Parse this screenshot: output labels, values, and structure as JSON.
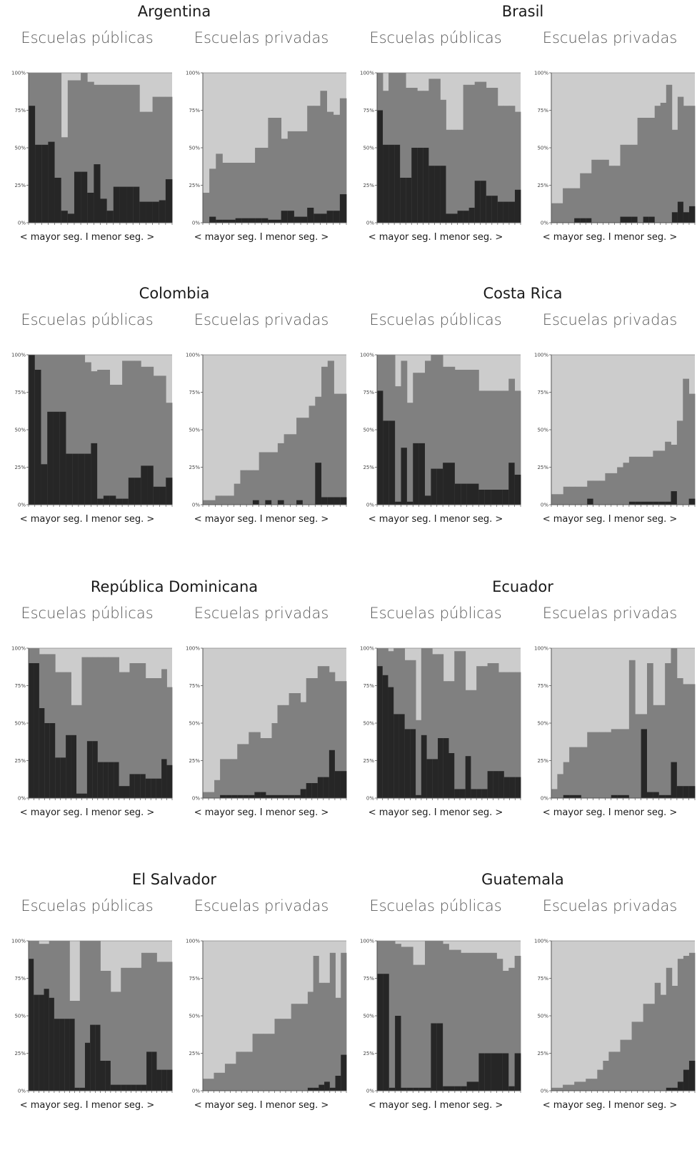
{
  "panel_titles": {
    "public": "Escuelas públicas",
    "private": "Escuelas privadas"
  },
  "x_axis_label": "< mayor seg. I menor seg. >",
  "y_ticks": [
    "0%",
    "25%",
    "50%",
    "75%",
    "100%"
  ],
  "colors": {
    "dark": "#262626",
    "medium": "#808080",
    "light": "#cccccc"
  },
  "countries": [
    {
      "name": "Argentina",
      "public": {
        "dark": [
          78,
          52,
          52,
          54,
          30,
          8,
          6,
          34,
          34,
          20,
          39,
          16,
          8,
          24,
          24,
          24,
          24,
          14,
          14,
          14,
          15,
          29
        ],
        "mid": [
          100,
          100,
          100,
          100,
          100,
          57,
          95,
          95,
          100,
          94,
          92,
          92,
          92,
          92,
          92,
          92,
          92,
          74,
          74,
          84,
          84,
          84
        ]
      },
      "private": {
        "dark": [
          0,
          4,
          2,
          2,
          2,
          3,
          3,
          3,
          3,
          3,
          2,
          2,
          8,
          8,
          4,
          4,
          10,
          6,
          6,
          8,
          8,
          19
        ],
        "mid": [
          20,
          36,
          46,
          40,
          40,
          40,
          40,
          40,
          50,
          50,
          70,
          70,
          56,
          61,
          61,
          61,
          78,
          78,
          88,
          74,
          72,
          83
        ]
      }
    },
    {
      "name": "Brasil",
      "public": {
        "dark": [
          75,
          52,
          52,
          52,
          30,
          30,
          50,
          50,
          50,
          38,
          38,
          38,
          6,
          6,
          8,
          8,
          10,
          28,
          28,
          18,
          18,
          14,
          14,
          14,
          22
        ],
        "mid": [
          100,
          88,
          100,
          100,
          100,
          90,
          90,
          88,
          88,
          96,
          96,
          82,
          62,
          62,
          62,
          92,
          92,
          94,
          94,
          90,
          90,
          78,
          78,
          78,
          74
        ]
      },
      "private": {
        "dark": [
          0,
          0,
          0,
          0,
          3,
          3,
          3,
          0,
          0,
          0,
          0,
          0,
          4,
          4,
          4,
          0,
          4,
          4,
          0,
          0,
          0,
          7,
          14,
          7,
          11
        ]
      },
      "private_mid": [
        13,
        13,
        23,
        23,
        23,
        33,
        33,
        42,
        42,
        42,
        38,
        38,
        52,
        52,
        52,
        70,
        70,
        70,
        78,
        80,
        92,
        62,
        84,
        78,
        78
      ]
    },
    {
      "name": "Colombia",
      "public": {
        "dark": [
          100,
          90,
          27,
          62,
          62,
          62,
          34,
          34,
          34,
          34,
          41,
          4,
          6,
          6,
          4,
          4,
          18,
          18,
          26,
          26,
          12,
          12,
          18
        ],
        "mid": [
          100,
          100,
          100,
          100,
          100,
          100,
          100,
          100,
          100,
          95,
          89,
          90,
          90,
          80,
          80,
          96,
          96,
          96,
          92,
          92,
          86,
          86,
          68
        ]
      },
      "private": {
        "dark": [
          0,
          0,
          0,
          0,
          0,
          0,
          0,
          0,
          3,
          0,
          3,
          0,
          3,
          0,
          0,
          3,
          0,
          0,
          28,
          5,
          5,
          5,
          5
        ],
        "mid": [
          3,
          3,
          6,
          6,
          6,
          14,
          23,
          23,
          23,
          35,
          35,
          35,
          41,
          47,
          47,
          58,
          58,
          66,
          72,
          92,
          96,
          74,
          74
        ]
      }
    },
    {
      "name": "Costa Rica",
      "public": {
        "dark": [
          76,
          56,
          56,
          2,
          38,
          2,
          41,
          41,
          6,
          24,
          24,
          28,
          28,
          14,
          14,
          14,
          14,
          10,
          10,
          10,
          10,
          10,
          28,
          20
        ],
        "mid": [
          100,
          100,
          100,
          79,
          96,
          68,
          88,
          88,
          96,
          100,
          100,
          92,
          92,
          90,
          90,
          90,
          90,
          76,
          76,
          76,
          76,
          76,
          84,
          76
        ]
      },
      "private": {
        "dark": [
          0,
          0,
          0,
          0,
          0,
          0,
          4,
          0,
          0,
          0,
          0,
          0,
          0,
          2,
          2,
          2,
          2,
          2,
          2,
          2,
          9,
          0,
          0,
          4
        ],
        "mid": [
          7,
          7,
          12,
          12,
          12,
          12,
          16,
          16,
          16,
          21,
          21,
          25,
          28,
          32,
          32,
          32,
          32,
          36,
          36,
          42,
          40,
          56,
          84,
          74
        ]
      }
    },
    {
      "name": "República Dominicana",
      "public": {
        "dark": [
          90,
          90,
          60,
          50,
          50,
          27,
          27,
          42,
          42,
          3,
          3,
          38,
          38,
          24,
          24,
          24,
          24,
          8,
          8,
          16,
          16,
          16,
          13,
          13,
          13,
          26,
          22
        ],
        "mid": [
          100,
          100,
          96,
          96,
          96,
          84,
          84,
          84,
          62,
          62,
          94,
          94,
          94,
          94,
          94,
          94,
          94,
          84,
          84,
          90,
          90,
          90,
          80,
          80,
          80,
          86,
          74
        ]
      },
      "private": {
        "dark": [
          0,
          0,
          0,
          2,
          2,
          2,
          2,
          2,
          2,
          4,
          4,
          2,
          2,
          2,
          2,
          2,
          2,
          6,
          10,
          10,
          14,
          14,
          32,
          18,
          18
        ],
        "mid": [
          4,
          4,
          12,
          26,
          26,
          26,
          36,
          36,
          44,
          44,
          40,
          40,
          50,
          62,
          62,
          70,
          70,
          64,
          80,
          80,
          88,
          88,
          84,
          78,
          78
        ]
      }
    },
    {
      "name": "Ecuador",
      "public": {
        "dark": [
          88,
          82,
          74,
          56,
          56,
          46,
          46,
          2,
          42,
          26,
          26,
          40,
          40,
          30,
          6,
          6,
          28,
          6,
          6,
          6,
          18,
          18,
          18,
          14,
          14,
          14
        ],
        "mid": [
          100,
          100,
          98,
          100,
          100,
          92,
          92,
          52,
          100,
          100,
          96,
          96,
          78,
          78,
          98,
          98,
          72,
          72,
          88,
          88,
          90,
          90,
          84,
          84,
          84,
          84
        ]
      },
      "private": {
        "dark": [
          0,
          0,
          2,
          2,
          2,
          0,
          0,
          0,
          0,
          0,
          2,
          2,
          2,
          0,
          0,
          46,
          4,
          4,
          2,
          2,
          24,
          8,
          8,
          8
        ],
        "mid": [
          6,
          16,
          24,
          34,
          34,
          34,
          44,
          44,
          44,
          44,
          46,
          46,
          46,
          92,
          56,
          56,
          90,
          62,
          62,
          90,
          100,
          80,
          76,
          76
        ]
      }
    },
    {
      "name": "El Salvador",
      "public": {
        "dark": [
          88,
          64,
          64,
          68,
          62,
          48,
          48,
          48,
          48,
          2,
          2,
          32,
          44,
          44,
          20,
          20,
          4,
          4,
          4,
          4,
          4,
          4,
          4,
          26,
          26,
          14,
          14,
          14
        ],
        "mid": [
          100,
          100,
          98,
          98,
          100,
          100,
          100,
          100,
          60,
          60,
          100,
          100,
          100,
          100,
          80,
          80,
          66,
          66,
          82,
          82,
          82,
          82,
          92,
          92,
          92,
          86,
          86,
          86
        ]
      },
      "private": {
        "dark": [
          0,
          0,
          0,
          0,
          0,
          0,
          0,
          0,
          0,
          0,
          0,
          0,
          0,
          0,
          0,
          0,
          0,
          0,
          0,
          2,
          2,
          4,
          6,
          2,
          10,
          24
        ],
        "mid": [
          8,
          8,
          12,
          12,
          18,
          18,
          26,
          26,
          26,
          38,
          38,
          38,
          38,
          48,
          48,
          48,
          58,
          58,
          58,
          66,
          90,
          72,
          72,
          92,
          62,
          92
        ]
      }
    },
    {
      "name": "Guatemala",
      "public": {
        "dark": [
          78,
          78,
          2,
          50,
          2,
          2,
          2,
          2,
          2,
          45,
          45,
          3,
          3,
          3,
          3,
          6,
          6,
          25,
          25,
          25,
          25,
          25,
          3,
          25
        ],
        "mid": [
          100,
          100,
          100,
          98,
          96,
          96,
          84,
          84,
          100,
          100,
          100,
          98,
          94,
          94,
          92,
          92,
          92,
          92,
          92,
          92,
          88,
          80,
          82,
          90
        ]
      },
      "private": {
        "dark": [
          0,
          0,
          0,
          0,
          0,
          0,
          0,
          0,
          0,
          0,
          0,
          0,
          0,
          0,
          0,
          0,
          0,
          0,
          0,
          0,
          2,
          2,
          6,
          14,
          20
        ],
        "mid": [
          2,
          2,
          4,
          4,
          6,
          6,
          8,
          8,
          14,
          20,
          26,
          26,
          34,
          34,
          46,
          46,
          58,
          58,
          72,
          64,
          82,
          70,
          88,
          90,
          92
        ]
      }
    }
  ]
}
